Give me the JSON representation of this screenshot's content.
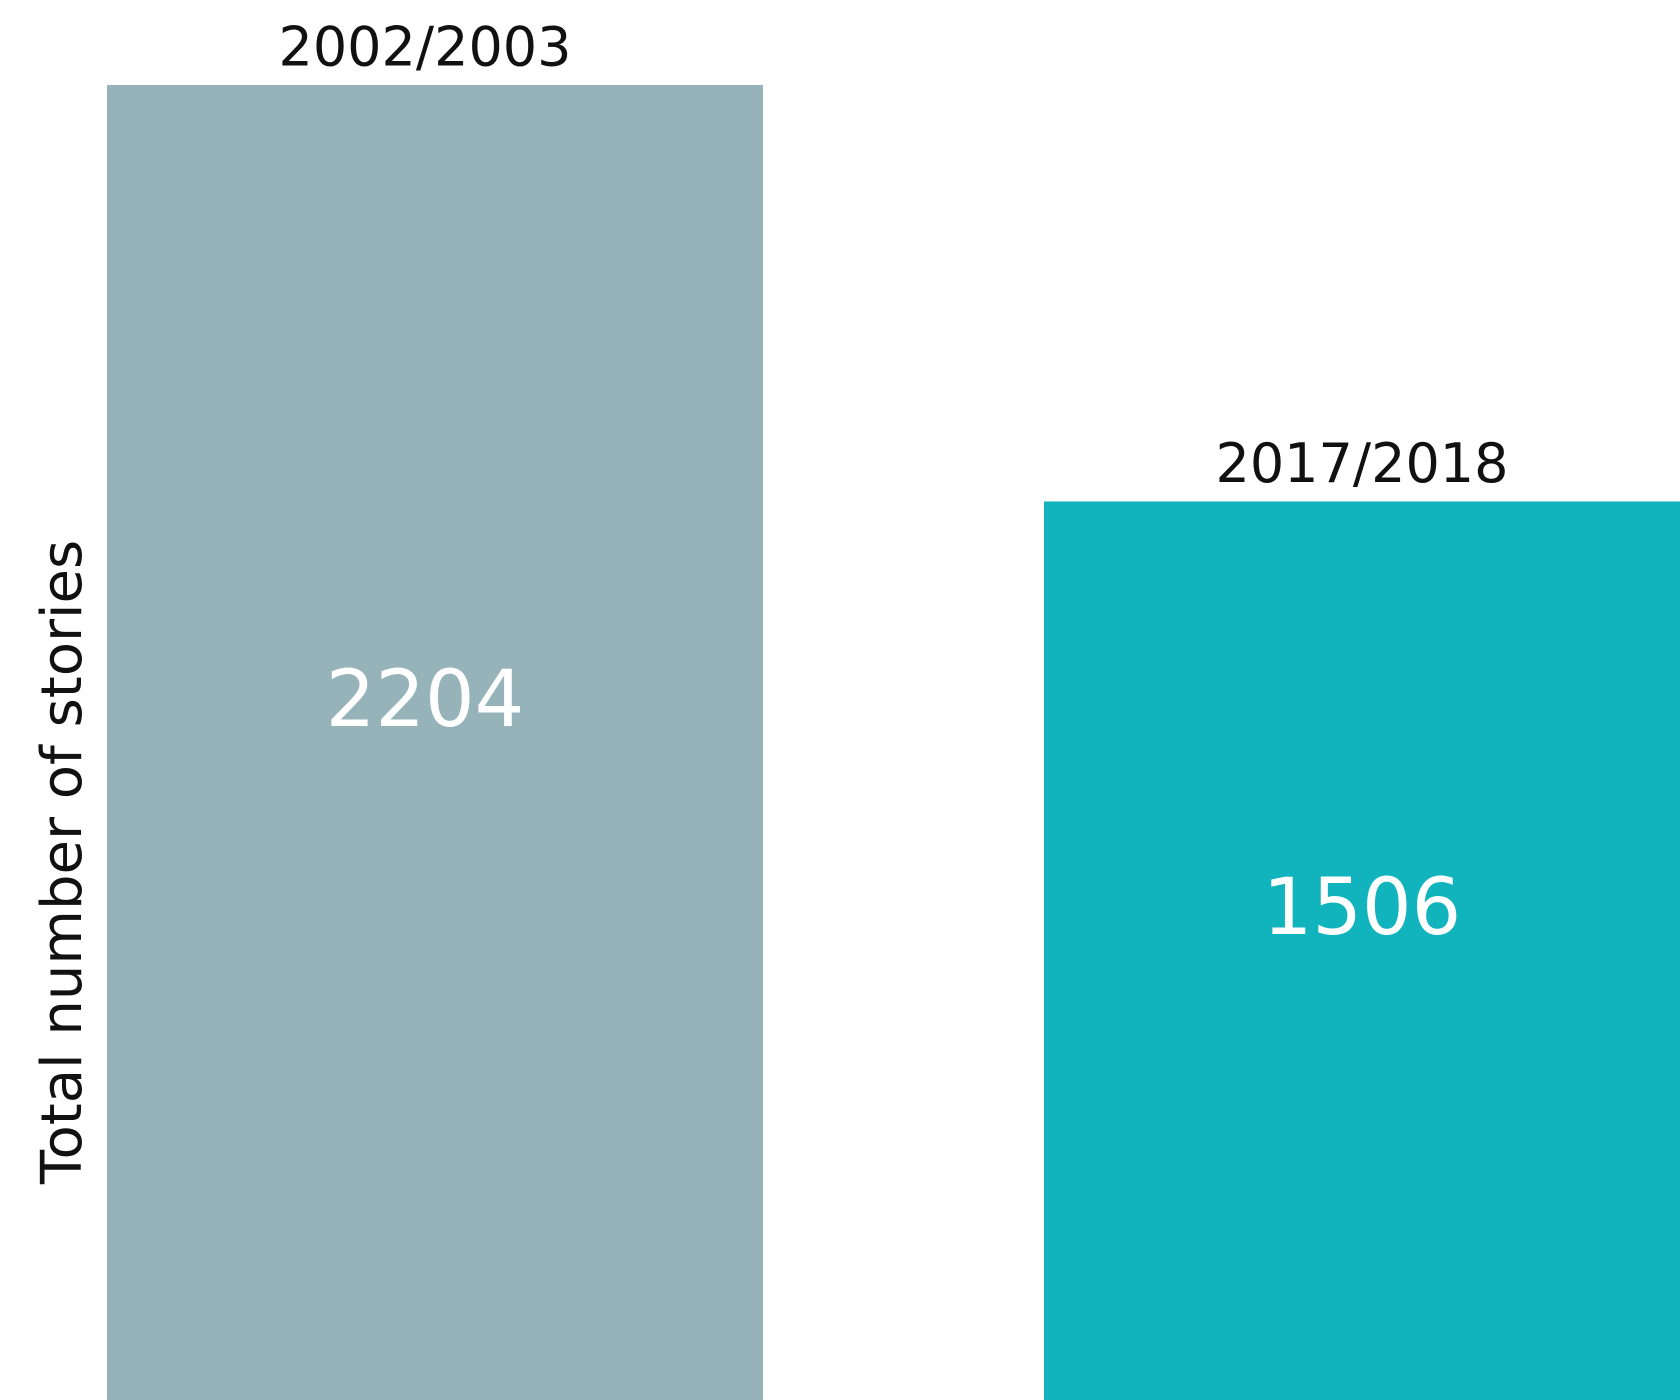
{
  "chart_data": {
    "type": "bar",
    "y_label": "Total number of stories",
    "categories": [
      "2002/2003",
      "2017/2018"
    ],
    "values": [
      2204,
      1506
    ],
    "colors": [
      "#95b3b8",
      "#11b4bc"
    ]
  }
}
